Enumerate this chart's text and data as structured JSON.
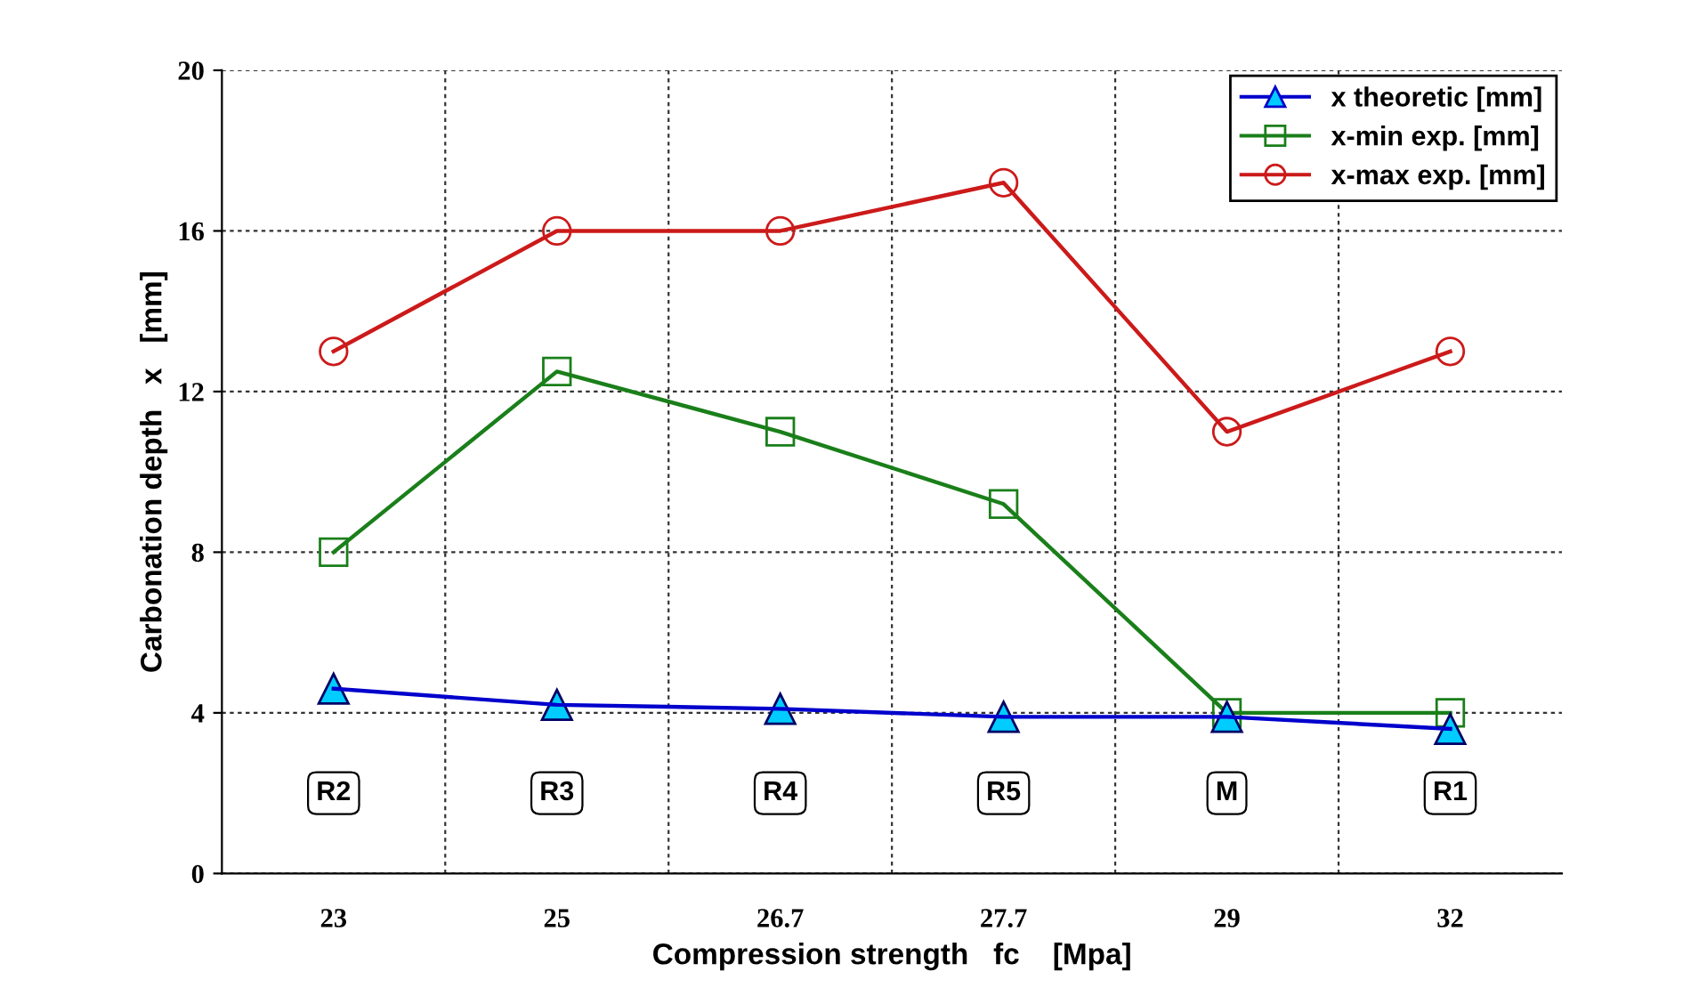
{
  "chart_data": {
    "type": "line",
    "xlabel": "Compression strength   fc    [Mpa]",
    "ylabel": "Carbonation depth   x   [mm]",
    "categories": [
      "23",
      "25",
      "26.7",
      "27.7",
      "29",
      "32"
    ],
    "ylim": [
      0,
      20
    ],
    "yticks": [
      0,
      4,
      8,
      12,
      16,
      20
    ],
    "grid": true,
    "legend": "top right",
    "series": [
      {
        "name": "x theoretic [mm]",
        "color": "#0000cc",
        "colors": [
          "#00ccff",
          "#00ccff",
          "#00ccff",
          "#00ccff",
          "#00ccff",
          "#00ccff"
        ],
        "marker": "triangle",
        "values": [
          4.6,
          4.2,
          4.1,
          3.9,
          3.9,
          3.6
        ]
      },
      {
        "name": "x-min exp. [mm]",
        "color": "#1a7f1a",
        "marker": "square",
        "values": [
          8,
          12.5,
          11,
          9.2,
          4,
          4
        ]
      },
      {
        "name": "x-max exp. [mm]",
        "color": "#cc1a1a",
        "marker": "circle",
        "values": [
          13,
          16,
          16,
          17.2,
          11,
          13
        ]
      }
    ],
    "annotations": [
      {
        "text": "R2",
        "x": "23",
        "y": 2
      },
      {
        "text": "R3",
        "x": "25",
        "y": 2
      },
      {
        "text": "R4",
        "x": "26.7",
        "y": 2
      },
      {
        "text": "R5",
        "x": "27.7",
        "y": 2
      },
      {
        "text": "M",
        "x": "29",
        "y": 2
      },
      {
        "text": "R1",
        "x": "32",
        "y": 2
      }
    ]
  }
}
